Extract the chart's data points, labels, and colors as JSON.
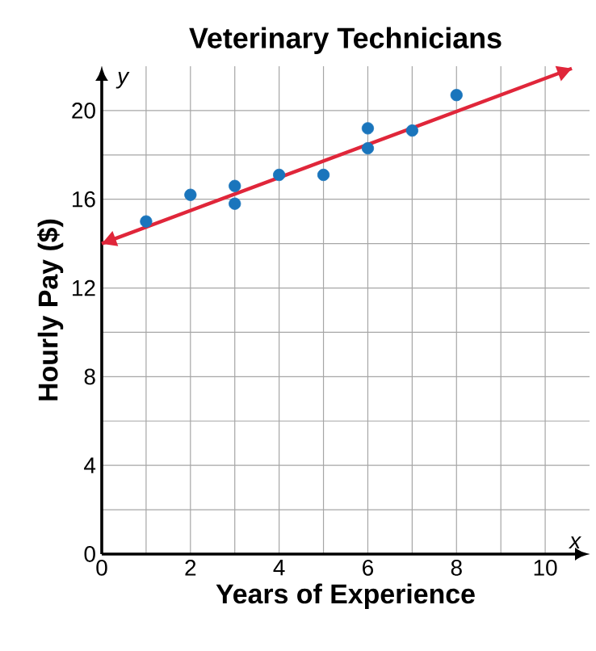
{
  "chart_data": {
    "type": "scatter",
    "title": "**Veterinary Technicians**",
    "xlabel": "**Years of Experience**",
    "ylabel": "**Hourly Pay ($)**",
    "annotations": [
      "*x*",
      "*y*"
    ],
    "xlim": [
      0,
      11
    ],
    "ylim": [
      0,
      22
    ],
    "xticks": [
      0,
      2,
      4,
      6,
      8,
      10
    ],
    "yticks": [
      0,
      4,
      8,
      12,
      16,
      20
    ],
    "grid": true,
    "series": [
      {
        "type": "scatter",
        "marker": "circle",
        "color": "#1a75bc",
        "x": [
          1,
          2,
          3,
          3,
          4,
          5,
          6,
          6,
          7,
          8
        ],
        "values": [
          15.0,
          16.2,
          16.6,
          15.8,
          17.1,
          17.1,
          19.2,
          18.3,
          19.1,
          20.7
        ]
      },
      {
        "type": "line",
        "marker": "none",
        "color": "#e0263a",
        "x": [
          0,
          10.6
        ],
        "values": [
          14.0,
          21.9
        ]
      }
    ]
  }
}
